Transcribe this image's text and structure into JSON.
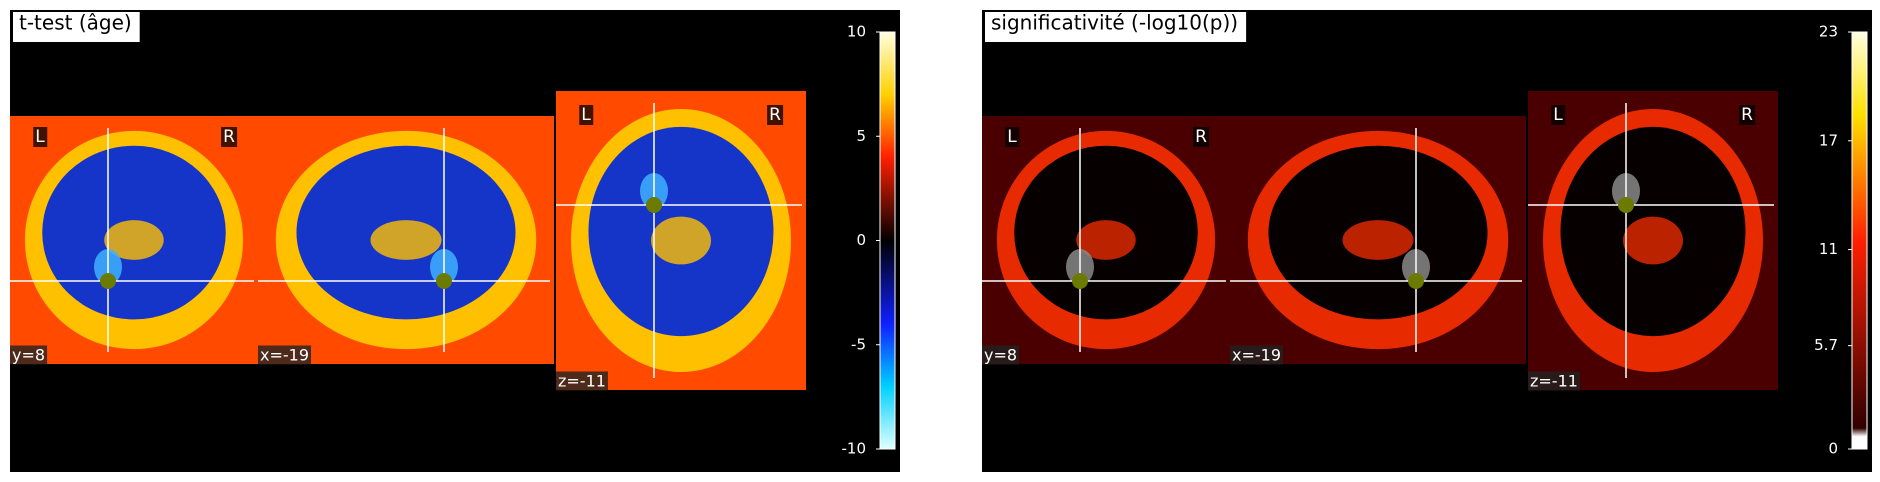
{
  "panels": [
    {
      "title": "t-test (âge)",
      "slices": [
        {
          "coord": "y=8",
          "left": "L",
          "right": "R"
        },
        {
          "coord": "x=-19"
        },
        {
          "coord": "z=-11",
          "left": "L",
          "right": "R"
        }
      ],
      "colorbar_ticks": [
        10,
        5,
        0,
        -5,
        -10
      ]
    },
    {
      "title": "significativité (-log10(p))",
      "slices": [
        {
          "coord": "y=8",
          "left": "L",
          "right": "R"
        },
        {
          "coord": "x=-19"
        },
        {
          "coord": "z=-11",
          "left": "L",
          "right": "R"
        }
      ],
      "colorbar_ticks": [
        23,
        17,
        11,
        5.7,
        0
      ]
    }
  ]
}
